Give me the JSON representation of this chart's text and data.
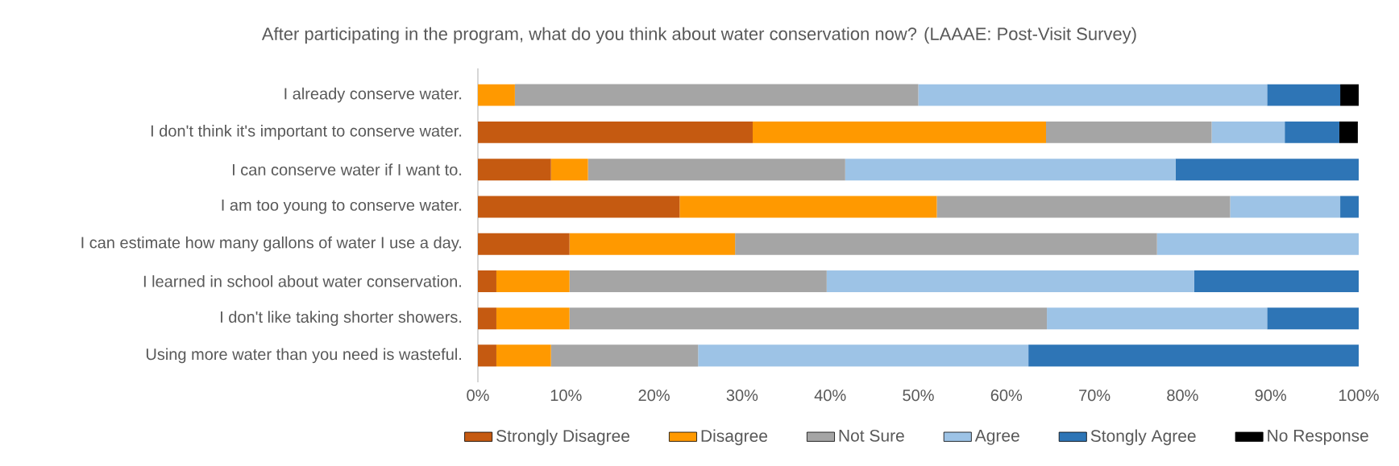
{
  "chart_data": {
    "type": "bar",
    "orientation": "horizontal",
    "stacked": true,
    "title": "After participating in the program, what do you think about water conservation now? (LAAAE: Post-Visit Survey)",
    "categories": [
      "I already conserve water.",
      "I don't think it's important to conserve water.",
      "I can conserve water if I want to.",
      "I am too young to conserve water.",
      "I can estimate how many gallons of water I use a day.",
      "I learned in school about water conservation.",
      "I don't like taking shorter showers.",
      "Using more water than you need is wasteful."
    ],
    "series": [
      {
        "name": "Strongly Disagree",
        "color": "#c55a11",
        "values": [
          0,
          31.2,
          8.3,
          22.9,
          10.4,
          2.1,
          2.1,
          2.1
        ]
      },
      {
        "name": "Disagree",
        "color": "#ff9900",
        "values": [
          4.2,
          33.3,
          4.2,
          29.2,
          18.8,
          8.3,
          8.3,
          6.2
        ]
      },
      {
        "name": "Not Sure",
        "color": "#a5a5a5",
        "values": [
          45.8,
          18.8,
          29.2,
          33.3,
          47.9,
          29.2,
          54.2,
          16.7
        ]
      },
      {
        "name": "Agree",
        "color": "#9dc3e6",
        "values": [
          39.6,
          8.3,
          37.5,
          12.5,
          22.9,
          41.7,
          25.0,
          37.5
        ]
      },
      {
        "name": "Stongly Agree",
        "color": "#2e75b6",
        "values": [
          8.3,
          6.2,
          20.8,
          2.1,
          0,
          18.8,
          10.4,
          37.5
        ]
      },
      {
        "name": "No Response",
        "color": "#000000",
        "values": [
          2.1,
          2.1,
          null,
          null,
          null,
          null,
          null,
          null
        ]
      }
    ],
    "xlim": [
      0,
      100
    ],
    "xticks": [
      {
        "value": 0,
        "label": "0%"
      },
      {
        "value": 10,
        "label": "10%"
      },
      {
        "value": 20,
        "label": "20%"
      },
      {
        "value": 30,
        "label": "30%"
      },
      {
        "value": 40,
        "label": "40%"
      },
      {
        "value": 50,
        "label": "50%"
      },
      {
        "value": 60,
        "label": "60%"
      },
      {
        "value": 70,
        "label": "70%"
      },
      {
        "value": 80,
        "label": "80%"
      },
      {
        "value": 90,
        "label": "90%"
      },
      {
        "value": 100,
        "label": "100%"
      }
    ],
    "grid": false,
    "legend": "bottom"
  }
}
